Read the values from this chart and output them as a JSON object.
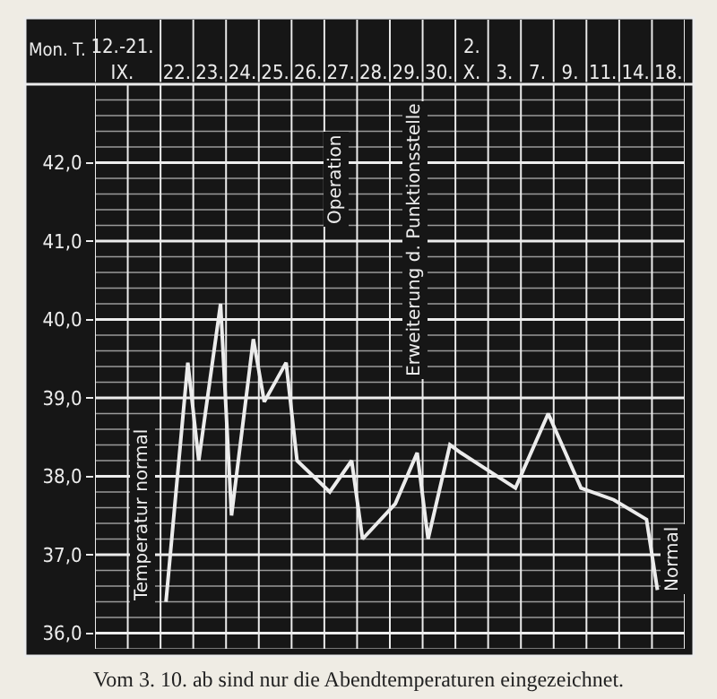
{
  "chart_data": {
    "type": "line",
    "xlabel": "Mon. T.",
    "categories": [
      null,
      null,
      "12.-21.\nIX.",
      null,
      null,
      null,
      null,
      "22.",
      null,
      null,
      "23.",
      null,
      null,
      "24.",
      null,
      null,
      "25.",
      null,
      null,
      "26.",
      null,
      null,
      "27.",
      null,
      null,
      "28.",
      null,
      null,
      "29.",
      null,
      null,
      "30.",
      null,
      null,
      "2.\nX.",
      null,
      null,
      "3.",
      null,
      null,
      "7.",
      null,
      null,
      "9.",
      null,
      null,
      "11.",
      null,
      null,
      "14.",
      null,
      null,
      "18.",
      null
    ],
    "ylim": [
      35.8,
      43.0
    ],
    "yticks": [
      {
        "value": 36,
        "label": "36,0"
      },
      {
        "value": 37,
        "label": "37,0"
      },
      {
        "value": 38,
        "label": "38,0"
      },
      {
        "value": 39,
        "label": "39,0"
      },
      {
        "value": 40,
        "label": "40,0"
      },
      {
        "value": 41,
        "label": "41,0"
      },
      {
        "value": 42,
        "label": "42,0"
      }
    ],
    "series": [
      {
        "color": "#ececec",
        "values": [
          null,
          null,
          null,
          null,
          null,
          null,
          36.4,
          null,
          39.45,
          38.2,
          null,
          40.2,
          37.5,
          null,
          39.75,
          38.95,
          null,
          39.45,
          38.2,
          null,
          null,
          37.8,
          null,
          38.2,
          37.2,
          null,
          null,
          37.65,
          null,
          38.3,
          37.2,
          null,
          38.4,
          38.3,
          null,
          null,
          null,
          null,
          37.85,
          null,
          null,
          38.8,
          null,
          null,
          37.85,
          null,
          null,
          37.7,
          null,
          null,
          37.45,
          36.55,
          null,
          null
        ]
      }
    ],
    "annotations": [
      "Temperatur normal",
      "Operation",
      "Erweiterung d. Punktionsstelle",
      "Normal",
      "Vom 3. 10. ab sind nur die Abendtemperaturen eingezeichnet."
    ],
    "grid": true,
    "marker": "none",
    "line_style": "solid"
  }
}
